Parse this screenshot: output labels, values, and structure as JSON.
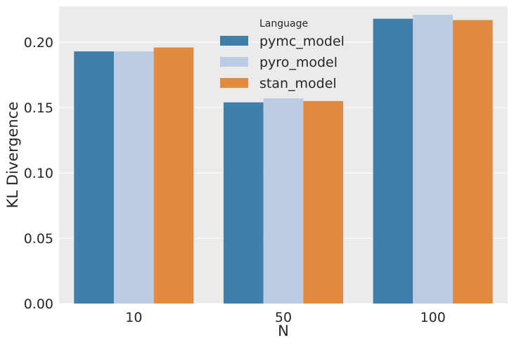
{
  "chart_data": {
    "type": "bar",
    "categories": [
      "10",
      "50",
      "100"
    ],
    "series": [
      {
        "name": "pymc_model",
        "values": [
          0.193,
          0.154,
          0.218
        ]
      },
      {
        "name": "pyro_model",
        "values": [
          0.193,
          0.157,
          0.221
        ]
      },
      {
        "name": "stan_model",
        "values": [
          0.196,
          0.155,
          0.217
        ]
      }
    ],
    "xlabel": "N",
    "ylabel": "KL Divergence",
    "ylim": [
      0,
      0.2275
    ],
    "yticks": [
      "0.00",
      "0.05",
      "0.10",
      "0.15",
      "0.20"
    ],
    "legend": {
      "title": "Language",
      "placement": "top-center"
    },
    "grid": true,
    "colors": {
      "pymc_model": "#3f7faa",
      "pyro_model": "#bbcce3",
      "stan_model": "#e28b3e",
      "background": "#ebebeb",
      "grid": "#ffffff"
    }
  }
}
